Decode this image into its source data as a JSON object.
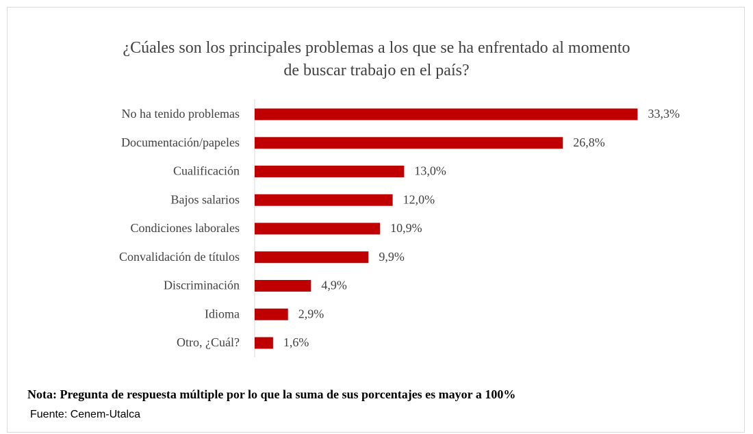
{
  "chart_data": {
    "type": "hbar",
    "title": "¿Cúales son los principales problemas a los que se ha enfrentado al momento de buscar trabajo en el país?",
    "categories": [
      "No ha tenido problemas",
      "Documentación/papeles",
      "Cualificación",
      "Bajos salarios",
      "Condiciones laborales",
      "Convalidación de títulos",
      "Discriminación",
      "Idioma",
      "Otro, ¿Cuál?"
    ],
    "values": [
      33.3,
      26.8,
      13.0,
      12.0,
      10.9,
      9.9,
      4.9,
      2.9,
      1.6
    ],
    "value_labels": [
      "33,3%",
      "26,8%",
      "13,0%",
      "12,0%",
      "10,9%",
      "9,9%",
      "4,9%",
      "2,9%",
      "1,6%"
    ],
    "color": "#c00000",
    "note": "Nota: Pregunta de respuesta múltiple por lo que la suma de sus porcentajes es mayor a 100%",
    "source": "Fuente: Cenem-Utalca"
  }
}
